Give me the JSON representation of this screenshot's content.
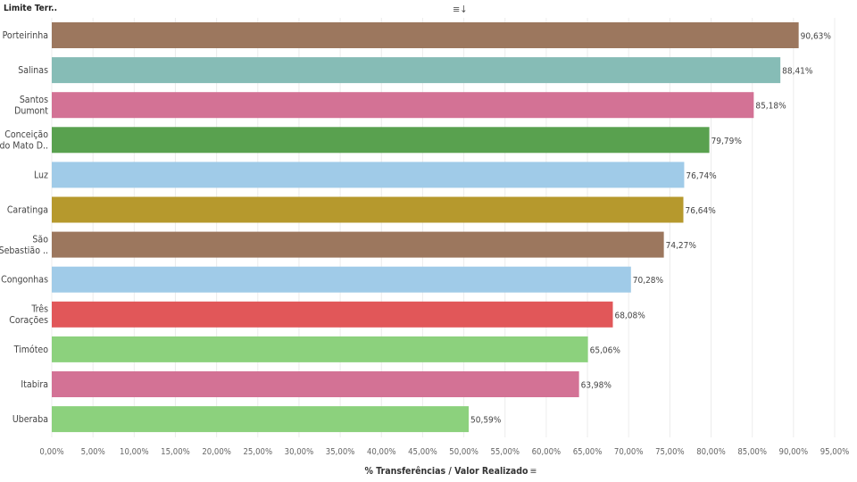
{
  "header": {
    "dimension_label": "Limite Terr..",
    "sort_icon": "≡↓"
  },
  "chart_data": {
    "type": "bar",
    "orientation": "horizontal",
    "title": "",
    "xlabel": "% Transferências / Valor Realizado",
    "ylabel": "Limite Terr..",
    "xlim": [
      0,
      95
    ],
    "grid": true,
    "categories": [
      [
        "Porteirinha"
      ],
      [
        "Salinas"
      ],
      [
        "Santos",
        "Dumont"
      ],
      [
        "Conceição",
        "do Mato D.."
      ],
      [
        "Luz"
      ],
      [
        "Caratinga"
      ],
      [
        "São",
        "Sebastião .."
      ],
      [
        "Congonhas"
      ],
      [
        "Três",
        "Corações"
      ],
      [
        "Timóteo"
      ],
      [
        "Itabira"
      ],
      [
        "Uberaba"
      ]
    ],
    "values": [
      90.63,
      88.41,
      85.18,
      79.79,
      76.74,
      76.64,
      74.27,
      70.28,
      68.08,
      65.06,
      63.98,
      50.59
    ],
    "value_labels": [
      "90,63%",
      "88,41%",
      "85,18%",
      "79,79%",
      "76,74%",
      "76,64%",
      "74,27%",
      "70,28%",
      "68,08%",
      "65,06%",
      "63,98%",
      "50,59%"
    ],
    "colors": [
      "#9c775e",
      "#86bcb6",
      "#d37295",
      "#59a14f",
      "#a0cbe8",
      "#b6992d",
      "#9c775e",
      "#a0cbe8",
      "#e15759",
      "#8cd17d",
      "#d37295",
      "#8cd17d"
    ],
    "ticks": [
      0,
      5,
      10,
      15,
      20,
      25,
      30,
      35,
      40,
      45,
      50,
      55,
      60,
      65,
      70,
      75,
      80,
      85,
      90,
      95
    ],
    "tick_labels": [
      "0,00%",
      "5,00%",
      "10,00%",
      "15,00%",
      "20,00%",
      "25,00%",
      "30,00%",
      "35,00%",
      "40,00%",
      "45,00%",
      "50,00%",
      "55,00%",
      "60,00%",
      "65,00%",
      "70,00%",
      "75,00%",
      "80,00%",
      "85,00%",
      "90,00%",
      "95,00%"
    ]
  },
  "footer": {
    "sort_icon": "≡"
  }
}
